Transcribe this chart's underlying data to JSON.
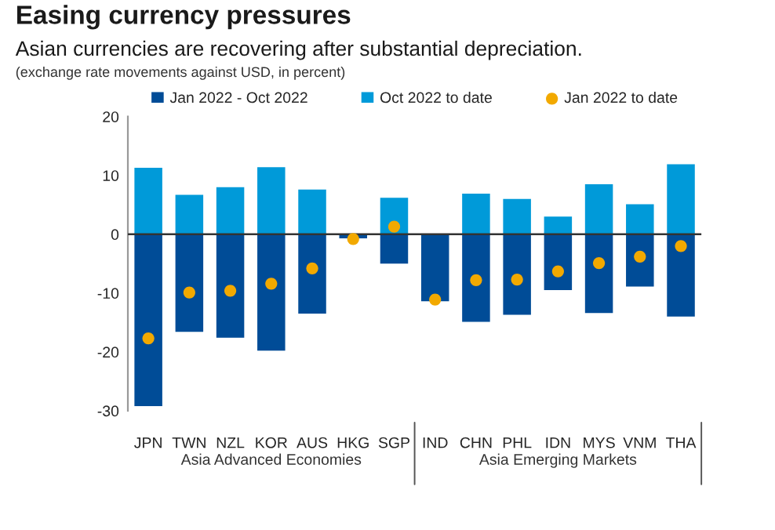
{
  "chart_data": {
    "type": "bar",
    "title": "Easing currency pressures",
    "subtitle": "Asian currencies are recovering after substantial depreciation.",
    "annotations": [
      "(exchange rate movements against USD, in percent)",
      "Asia Advanced Economies",
      "Asia Emerging Markets"
    ],
    "stacked": true,
    "categories": [
      "JPN",
      "TWN",
      "NZL",
      "KOR",
      "AUS",
      "HKG",
      "SGP",
      "IND",
      "CHN",
      "PHL",
      "IDN",
      "MYS",
      "VNM",
      "THA"
    ],
    "series": [
      {
        "name": "Jan 2022 - Oct 2022",
        "color": "#004c97",
        "values": [
          -29.2,
          -16.6,
          -17.6,
          -19.8,
          -13.5,
          -0.7,
          -5.0,
          -11.4,
          -14.9,
          -13.7,
          -9.5,
          -13.4,
          -8.9,
          -14.0
        ]
      },
      {
        "name": "Oct 2022 to date",
        "color": "#009ad9",
        "values": [
          11.3,
          6.7,
          8.0,
          11.4,
          7.6,
          0,
          6.2,
          0,
          6.9,
          6.0,
          3.0,
          8.5,
          5.1,
          11.9
        ]
      },
      {
        "name": "Jan 2022 to date",
        "type": "scatter",
        "marker": "circle",
        "color": "#f2a900",
        "values": [
          -17.7,
          -9.9,
          -9.6,
          -8.4,
          -5.8,
          -0.8,
          1.3,
          -11.1,
          -7.8,
          -7.7,
          -6.3,
          -4.9,
          -3.8,
          -2.0
        ]
      }
    ],
    "ylim": [
      -30,
      20
    ],
    "yticks": [
      -30,
      -20,
      -10,
      0,
      10,
      20
    ],
    "ref_lines": [
      {
        "axis": "y",
        "value": 0,
        "color": "#333333"
      }
    ],
    "grid": false,
    "legend": "top"
  }
}
